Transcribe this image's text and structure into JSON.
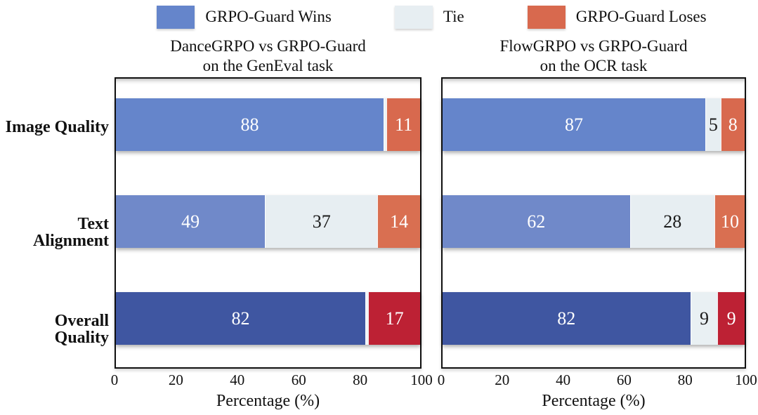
{
  "legend": {
    "items": [
      {
        "label": "GRPO-Guard Wins",
        "color": "#6585cb"
      },
      {
        "label": "Tie",
        "color": "#e7eef2"
      },
      {
        "label": "GRPO-Guard Loses",
        "color": "#d8694e"
      }
    ]
  },
  "categories": [
    "Image Quality",
    "Text Alignment",
    "Overall Quality"
  ],
  "panels": [
    {
      "title_line1": "DanceGRPO vs GRPO-Guard",
      "title_line2": "on the GenEval task",
      "xlabel": "Percentage (%)",
      "xticks": [
        "0",
        "20",
        "40",
        "60",
        "80",
        "100"
      ],
      "rows": [
        {
          "category": "Image Quality",
          "segments": [
            {
              "value": 88,
              "label": "88",
              "color": "#6585cb",
              "text_color": "#ffffff"
            },
            {
              "value": 1,
              "label": "",
              "color": "#edf3f6",
              "text_color": "#1a1a1a"
            },
            {
              "value": 11,
              "label": "11",
              "color": "#d8694e",
              "text_color": "#ffffff"
            }
          ]
        },
        {
          "category": "Text Alignment",
          "segments": [
            {
              "value": 49,
              "label": "49",
              "color": "#7089c9",
              "text_color": "#ffffff"
            },
            {
              "value": 37,
              "label": "37",
              "color": "#e7eef2",
              "text_color": "#1a1a1a"
            },
            {
              "value": 14,
              "label": "14",
              "color": "#d96f51",
              "text_color": "#ffffff"
            }
          ]
        },
        {
          "category": "Overall Quality",
          "segments": [
            {
              "value": 82,
              "label": "82",
              "color": "#3f56a1",
              "text_color": "#ffffff"
            },
            {
              "value": 1,
              "label": "",
              "color": "#f0f5f7",
              "text_color": "#1a1a1a"
            },
            {
              "value": 17,
              "label": "17",
              "color": "#bd2134",
              "text_color": "#ffffff"
            }
          ]
        }
      ]
    },
    {
      "title_line1": "FlowGRPO vs GRPO-Guard",
      "title_line2": "on the OCR task",
      "xlabel": "Percentage (%)",
      "xticks": [
        "0",
        "20",
        "40",
        "60",
        "80",
        "100"
      ],
      "rows": [
        {
          "category": "Image Quality",
          "segments": [
            {
              "value": 87,
              "label": "87",
              "color": "#6585cb",
              "text_color": "#ffffff"
            },
            {
              "value": 5,
              "label": "5",
              "color": "#e7eef2",
              "text_color": "#1a1a1a"
            },
            {
              "value": 8,
              "label": "8",
              "color": "#d8694e",
              "text_color": "#ffffff"
            }
          ]
        },
        {
          "category": "Text Alignment",
          "segments": [
            {
              "value": 62,
              "label": "62",
              "color": "#7089c9",
              "text_color": "#ffffff"
            },
            {
              "value": 28,
              "label": "28",
              "color": "#e7eef2",
              "text_color": "#1a1a1a"
            },
            {
              "value": 10,
              "label": "10",
              "color": "#d96f51",
              "text_color": "#ffffff"
            }
          ]
        },
        {
          "category": "Overall Quality",
          "segments": [
            {
              "value": 82,
              "label": "82",
              "color": "#3f56a1",
              "text_color": "#ffffff"
            },
            {
              "value": 9,
              "label": "9",
              "color": "#e9f0f3",
              "text_color": "#1a1a1a"
            },
            {
              "value": 9,
              "label": "9",
              "color": "#bd2134",
              "text_color": "#ffffff"
            }
          ]
        }
      ]
    }
  ],
  "chart_data": [
    {
      "type": "bar",
      "orientation": "horizontal",
      "stacked": true,
      "title": "DanceGRPO vs GRPO-Guard on the GenEval task",
      "categories": [
        "Image Quality",
        "Text Alignment",
        "Overall Quality"
      ],
      "series": [
        {
          "name": "GRPO-Guard Wins",
          "values": [
            88,
            49,
            82
          ]
        },
        {
          "name": "Tie",
          "values": [
            1,
            37,
            1
          ]
        },
        {
          "name": "GRPO-Guard Loses",
          "values": [
            11,
            14,
            17
          ]
        }
      ],
      "xlabel": "Percentage (%)",
      "xlim": [
        0,
        100
      ],
      "xticks": [
        0,
        20,
        40,
        60,
        80,
        100
      ],
      "legend_position": "top",
      "grid": false
    },
    {
      "type": "bar",
      "orientation": "horizontal",
      "stacked": true,
      "title": "FlowGRPO vs GRPO-Guard on the OCR task",
      "categories": [
        "Image Quality",
        "Text Alignment",
        "Overall Quality"
      ],
      "series": [
        {
          "name": "GRPO-Guard Wins",
          "values": [
            87,
            62,
            82
          ]
        },
        {
          "name": "Tie",
          "values": [
            5,
            28,
            9
          ]
        },
        {
          "name": "GRPO-Guard Loses",
          "values": [
            8,
            10,
            9
          ]
        }
      ],
      "xlabel": "Percentage (%)",
      "xlim": [
        0,
        100
      ],
      "xticks": [
        0,
        20,
        40,
        60,
        80,
        100
      ],
      "legend_position": "top",
      "grid": false
    }
  ]
}
